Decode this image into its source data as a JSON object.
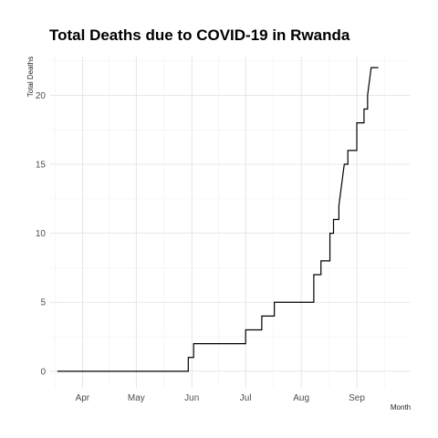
{
  "chart_data": {
    "type": "line",
    "title": "Total Deaths due to COVID-19 in Rwanda",
    "xlabel": "Month",
    "ylabel": "Total Deaths",
    "grid": true,
    "legend": "none",
    "x_axis": {
      "kind": "date",
      "range": [
        "2020-03-14",
        "2020-10-01"
      ],
      "ticks": [
        {
          "date": "2020-04-01",
          "label": "Apr"
        },
        {
          "date": "2020-05-01",
          "label": "May"
        },
        {
          "date": "2020-06-01",
          "label": "Jun"
        },
        {
          "date": "2020-07-01",
          "label": "Jul"
        },
        {
          "date": "2020-08-01",
          "label": "Aug"
        },
        {
          "date": "2020-09-01",
          "label": "Sep"
        }
      ]
    },
    "y_axis": {
      "range": [
        -1.2,
        22.8
      ],
      "ticks": [
        0,
        5,
        10,
        15,
        20
      ]
    },
    "series": [
      {
        "color": "#000000",
        "points": [
          [
            "2020-03-18",
            0
          ],
          [
            "2020-05-30",
            0
          ],
          [
            "2020-05-30",
            1
          ],
          [
            "2020-06-02",
            1
          ],
          [
            "2020-06-02",
            2
          ],
          [
            "2020-07-01",
            2
          ],
          [
            "2020-07-01",
            3
          ],
          [
            "2020-07-10",
            3
          ],
          [
            "2020-07-10",
            4
          ],
          [
            "2020-07-17",
            4
          ],
          [
            "2020-07-17",
            5
          ],
          [
            "2020-08-08",
            5
          ],
          [
            "2020-08-08",
            7
          ],
          [
            "2020-08-12",
            7
          ],
          [
            "2020-08-12",
            8
          ],
          [
            "2020-08-17",
            8
          ],
          [
            "2020-08-17",
            10
          ],
          [
            "2020-08-19",
            10
          ],
          [
            "2020-08-19",
            11
          ],
          [
            "2020-08-22",
            11
          ],
          [
            "2020-08-22",
            12
          ],
          [
            "2020-08-24",
            14
          ],
          [
            "2020-08-25",
            15
          ],
          [
            "2020-08-27",
            15
          ],
          [
            "2020-08-27",
            16
          ],
          [
            "2020-09-01",
            16
          ],
          [
            "2020-09-01",
            18
          ],
          [
            "2020-09-05",
            18
          ],
          [
            "2020-09-05",
            19
          ],
          [
            "2020-09-07",
            19
          ],
          [
            "2020-09-07",
            20
          ],
          [
            "2020-09-09",
            22
          ],
          [
            "2020-09-13",
            22
          ]
        ]
      }
    ]
  }
}
